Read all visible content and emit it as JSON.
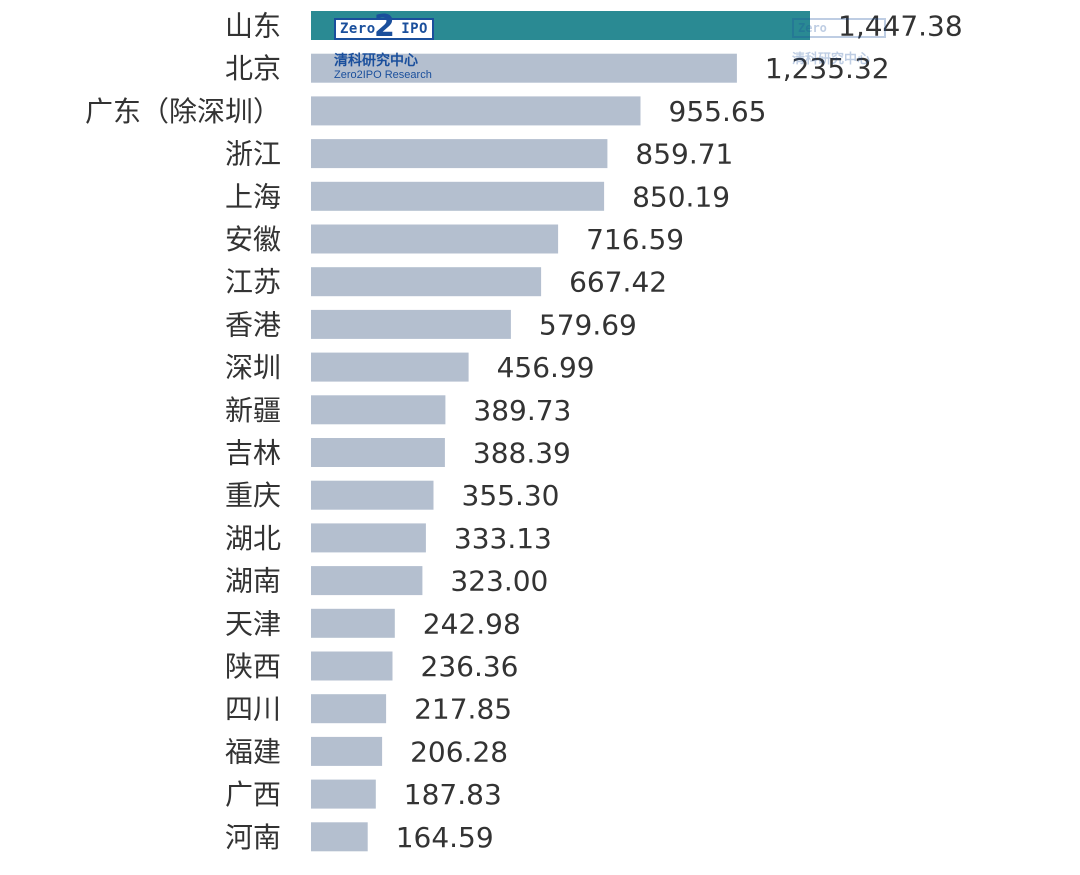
{
  "chart_data": {
    "type": "bar",
    "orientation": "horizontal",
    "categories": [
      "山东",
      "北京",
      "广东（除深圳）",
      "浙江",
      "上海",
      "安徽",
      "江苏",
      "香港",
      "深圳",
      "新疆",
      "吉林",
      "重庆",
      "湖北",
      "湖南",
      "天津",
      "陕西",
      "四川",
      "福建",
      "广西",
      "河南"
    ],
    "values": [
      1447.38,
      1235.32,
      955.65,
      859.71,
      850.19,
      716.59,
      667.42,
      579.69,
      456.99,
      389.73,
      388.39,
      355.3,
      333.13,
      323.0,
      242.98,
      236.36,
      217.85,
      206.28,
      187.83,
      164.59
    ],
    "value_labels": [
      "1,447.38",
      "1,235.32",
      "955.65",
      "859.71",
      "850.19",
      "716.59",
      "667.42",
      "579.69",
      "456.99",
      "389.73",
      "388.39",
      "355.30",
      "333.13",
      "323.00",
      "242.98",
      "236.36",
      "217.85",
      "206.28",
      "187.83",
      "164.59"
    ],
    "title": "",
    "xlabel": "",
    "ylabel": "",
    "xlim": [
      0,
      1447.38
    ],
    "grid": false,
    "legend": "none",
    "colors": {
      "highlight": "#2a8a93",
      "default": "#b4bfcf"
    },
    "highlight_index": 0
  },
  "watermark": {
    "logo_left": "Zero",
    "logo_mid": "2",
    "logo_right": "IPO",
    "org_cn": "清科研究中心",
    "org_en": "Zero2IPO Research"
  }
}
